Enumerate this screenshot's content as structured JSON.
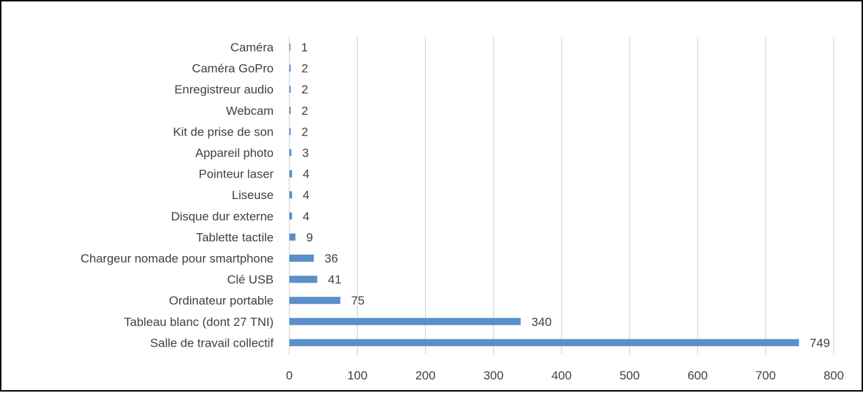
{
  "chart_data": {
    "type": "bar",
    "orientation": "horizontal",
    "title": "",
    "xlabel": "",
    "ylabel": "",
    "categories": [
      "Caméra",
      "Caméra GoPro",
      "Enregistreur audio",
      "Webcam",
      "Kit de prise de son",
      "Appareil photo",
      "Pointeur laser",
      "Liseuse",
      "Disque dur externe",
      "Tablette tactile",
      "Chargeur nomade pour smartphone",
      "Clé USB",
      "Ordinateur portable",
      "Tableau blanc (dont 27 TNI)",
      "Salle de travail collectif"
    ],
    "values": [
      1,
      2,
      2,
      2,
      2,
      3,
      4,
      4,
      4,
      9,
      36,
      41,
      75,
      340,
      749
    ],
    "data_labels": [
      "1",
      "2",
      "2",
      "2",
      "2",
      "3",
      "4",
      "4",
      "4",
      "9",
      "36",
      "41",
      "75",
      "340",
      "749"
    ],
    "xlim": [
      0,
      800
    ],
    "xticks": [
      0,
      100,
      200,
      300,
      400,
      500,
      600,
      700,
      800
    ],
    "xtick_labels": [
      "0",
      "100",
      "200",
      "300",
      "400",
      "500",
      "600",
      "700",
      "800"
    ],
    "grid": true,
    "legend": "none",
    "colors": {
      "bar": "#5b8fc9",
      "grid": "#d9d9d9",
      "text": "#404040",
      "border": "#000000"
    }
  }
}
